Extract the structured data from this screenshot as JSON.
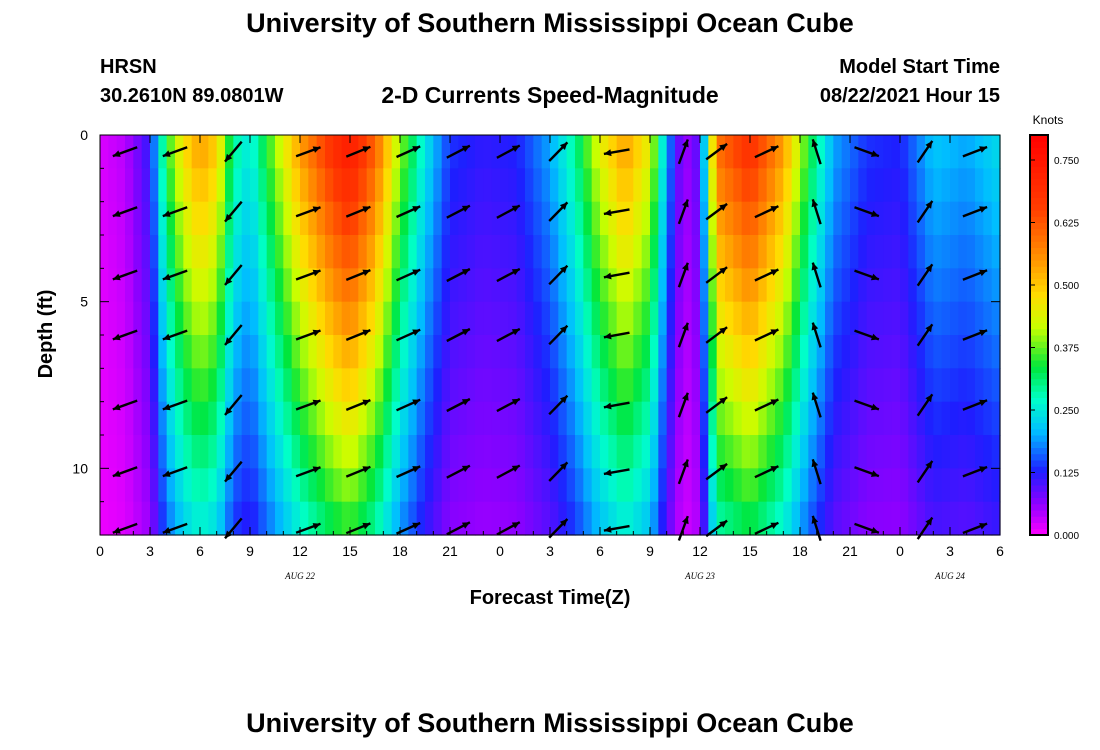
{
  "header": {
    "title": "University of Southern Mississippi Ocean Cube",
    "station": "HRSN",
    "coords": "30.2610N  89.0801W",
    "subtitle": "2-D Currents Speed-Magnitude",
    "model_start_label": "Model Start Time",
    "model_start_value": "08/22/2021 Hour 15"
  },
  "footer": {
    "title": "University of Southern Mississippi Ocean Cube"
  },
  "colors": {
    "low": "#ff00ff",
    "high": "#ff0000",
    "arrow": "#000000"
  },
  "chart_data": {
    "type": "heatmap",
    "title": "2-D Currents Speed-Magnitude",
    "xlabel": "Forecast Time(Z)",
    "ylabel": "Depth (ft)",
    "x_tick_labels": [
      "0",
      "3",
      "6",
      "9",
      "12",
      "15",
      "18",
      "21",
      "0",
      "3",
      "6",
      "9",
      "12",
      "15",
      "18",
      "21",
      "0",
      "3",
      "6"
    ],
    "x_range_hours": [
      0,
      54
    ],
    "date_labels": [
      {
        "text": "AUG  22",
        "hour": 12
      },
      {
        "text": "AUG  23",
        "hour": 36
      },
      {
        "text": "AUG  24",
        "hour": 51
      }
    ],
    "y_range_ft": [
      0,
      12
    ],
    "y_tick_labels": [
      "0",
      "5",
      "10"
    ],
    "y_tick_values": [
      0,
      5,
      10
    ],
    "colorbar": {
      "units": "Knots",
      "range": [
        0,
        0.8
      ],
      "tick_labels": [
        "0.000",
        "0.125",
        "0.250",
        "0.375",
        "0.500",
        "0.625",
        "0.750"
      ],
      "tick_values": [
        0,
        0.125,
        0.25,
        0.375,
        0.5,
        0.625,
        0.75
      ]
    },
    "depths_ft": [
      0,
      1,
      2,
      3,
      4,
      5,
      6,
      7,
      8,
      9,
      10,
      11,
      12
    ],
    "speed_profile_knots": [
      {
        "hour": 0,
        "speed": 0.02
      },
      {
        "hour": 1.5,
        "speed": 0.04
      },
      {
        "hour": 3,
        "speed": 0.12
      },
      {
        "hour": 4,
        "speed": 0.35
      },
      {
        "hour": 5,
        "speed": 0.48
      },
      {
        "hour": 6,
        "speed": 0.55
      },
      {
        "hour": 7,
        "speed": 0.5
      },
      {
        "hour": 8,
        "speed": 0.3
      },
      {
        "hour": 9,
        "speed": 0.25
      },
      {
        "hour": 10.5,
        "speed": 0.4
      },
      {
        "hour": 12,
        "speed": 0.55
      },
      {
        "hour": 14,
        "speed": 0.7
      },
      {
        "hour": 15,
        "speed": 0.75
      },
      {
        "hour": 16.5,
        "speed": 0.62
      },
      {
        "hour": 18,
        "speed": 0.4
      },
      {
        "hour": 19.5,
        "speed": 0.25
      },
      {
        "hour": 21,
        "speed": 0.14
      },
      {
        "hour": 23,
        "speed": 0.12
      },
      {
        "hour": 25,
        "speed": 0.13
      },
      {
        "hour": 27,
        "speed": 0.2
      },
      {
        "hour": 28.5,
        "speed": 0.3
      },
      {
        "hour": 30,
        "speed": 0.45
      },
      {
        "hour": 31.5,
        "speed": 0.55
      },
      {
        "hour": 33,
        "speed": 0.45
      },
      {
        "hour": 34,
        "speed": 0.2
      },
      {
        "hour": 35,
        "speed": 0.05
      },
      {
        "hour": 36,
        "speed": 0.1
      },
      {
        "hour": 37,
        "speed": 0.6
      },
      {
        "hour": 39,
        "speed": 0.7
      },
      {
        "hour": 41,
        "speed": 0.55
      },
      {
        "hour": 42.5,
        "speed": 0.35
      },
      {
        "hour": 44,
        "speed": 0.2
      },
      {
        "hour": 46,
        "speed": 0.14
      },
      {
        "hour": 48,
        "speed": 0.13
      },
      {
        "hour": 50,
        "speed": 0.22
      },
      {
        "hour": 52,
        "speed": 0.2
      },
      {
        "hour": 54,
        "speed": 0.24
      }
    ],
    "depth_decay_per_ft": 0.045,
    "arrow_grid": {
      "hours": [
        1.5,
        4.5,
        8,
        12.5,
        15.5,
        18.5,
        21.5,
        24.5,
        27.5,
        31,
        35,
        37,
        40,
        43,
        46,
        49.5,
        52.5
      ],
      "depths_ft": [
        0.5,
        2.3,
        4.2,
        6.0,
        8.1,
        10.1,
        11.8
      ]
    },
    "arrow_direction_deg": [
      {
        "hour": 0,
        "deg": 200
      },
      {
        "hour": 5,
        "deg": 200
      },
      {
        "hour": 8,
        "deg": 230
      },
      {
        "hour": 12,
        "deg": 20
      },
      {
        "hour": 20,
        "deg": 25
      },
      {
        "hour": 23,
        "deg": 30
      },
      {
        "hour": 27,
        "deg": 25
      },
      {
        "hour": 31,
        "deg": 190
      },
      {
        "hour": 35,
        "deg": 70
      },
      {
        "hour": 38,
        "deg": 20
      },
      {
        "hour": 42,
        "deg": 30
      },
      {
        "hour": 46,
        "deg": 340
      },
      {
        "hour": 50,
        "deg": 15
      },
      {
        "hour": 54,
        "deg": 25
      }
    ]
  }
}
